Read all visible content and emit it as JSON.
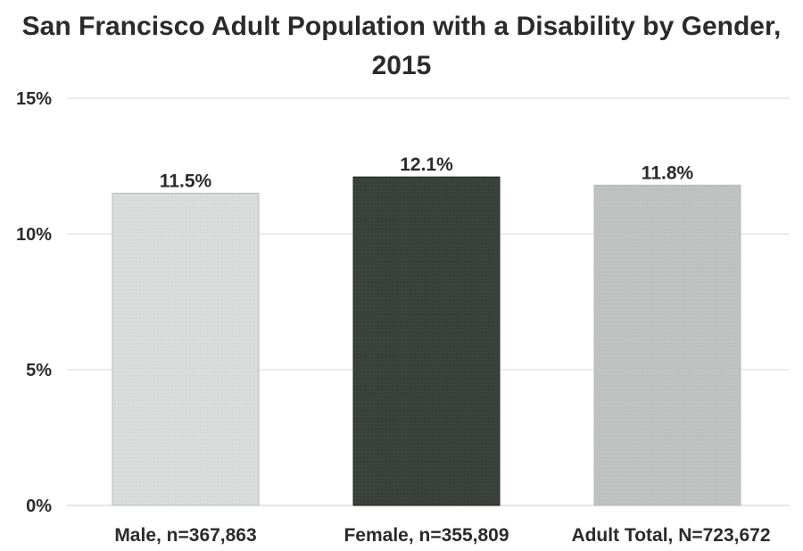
{
  "chart_data": {
    "type": "bar",
    "title": "San Francisco Adult Population with a Disability by Gender, 2015",
    "categories": [
      "Male, n=367,863",
      "Female, n=355,809",
      "Adult Total, N=723,672"
    ],
    "values": [
      11.5,
      12.1,
      11.8
    ],
    "data_labels": [
      "11.5%",
      "12.1%",
      "11.8%"
    ],
    "bar_colors": [
      "#d9dcdb",
      "#3a403c",
      "#bec2c0"
    ],
    "ylim": [
      0,
      15
    ],
    "yticks": [
      0,
      5,
      10,
      15
    ],
    "ytick_labels": [
      "0%",
      "5%",
      "10%",
      "15%"
    ],
    "grid": true,
    "legend": "none"
  }
}
